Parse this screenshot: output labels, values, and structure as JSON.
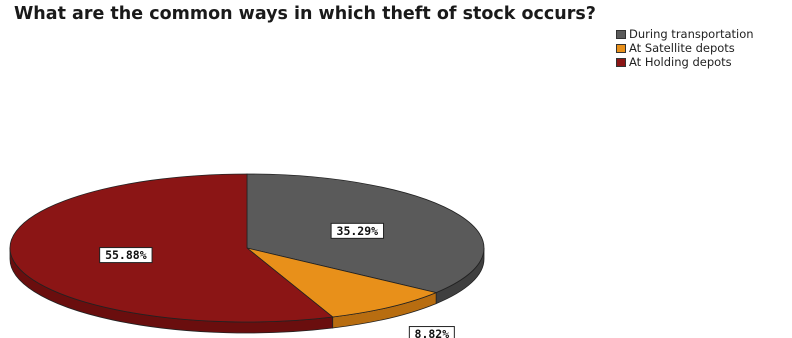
{
  "chart_data": {
    "type": "pie",
    "title": "What are the common ways in which theft of stock occurs?",
    "legend_position": "top-right",
    "slices": [
      {
        "label": "During transportation",
        "value": 35.29,
        "display": "35.29%",
        "color": "#5a5a5a",
        "side_color": "#3f3f3f"
      },
      {
        "label": "At Satellite depots",
        "value": 8.82,
        "display": "8.82%",
        "color": "#e8901a",
        "side_color": "#b86d10"
      },
      {
        "label": "At Holding depots",
        "value": 55.88,
        "display": "55.88%",
        "color": "#8b1515",
        "side_color": "#6a0e0e"
      }
    ]
  }
}
